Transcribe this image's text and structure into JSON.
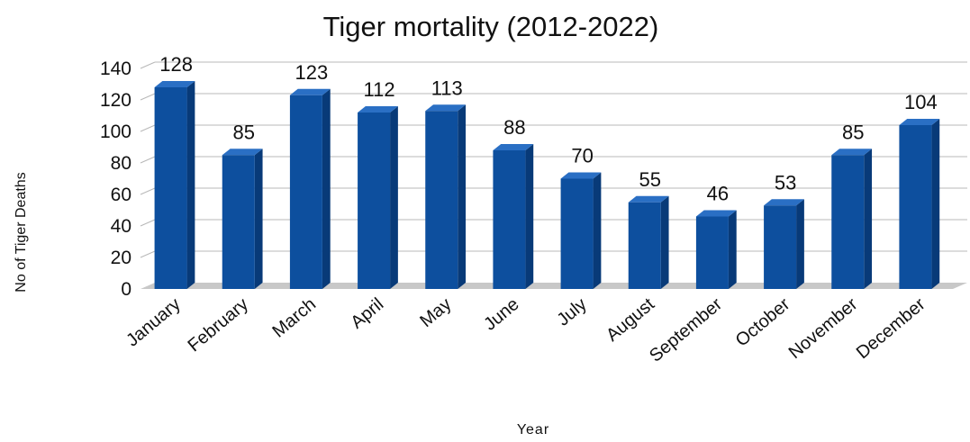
{
  "chart_data": {
    "type": "bar",
    "title": "Tiger mortality (2012-2022)",
    "xlabel": "Year",
    "ylabel": "No of Tiger Deaths",
    "ylim": [
      0,
      140
    ],
    "yticks": [
      0,
      20,
      40,
      60,
      80,
      100,
      120,
      140
    ],
    "grid": true,
    "legend": "none",
    "categories": [
      "January",
      "February",
      "March",
      "April",
      "May",
      "June",
      "July",
      "August",
      "September",
      "October",
      "November",
      "December"
    ],
    "values": [
      128,
      85,
      123,
      112,
      113,
      88,
      70,
      55,
      46,
      53,
      85,
      104
    ],
    "colors": {
      "bar_front": "#0d4f9e",
      "bar_side": "#083a78",
      "bar_top": "#2a6fc4",
      "floor": "#c8c8c8",
      "grid": "#b8b8b8"
    }
  }
}
